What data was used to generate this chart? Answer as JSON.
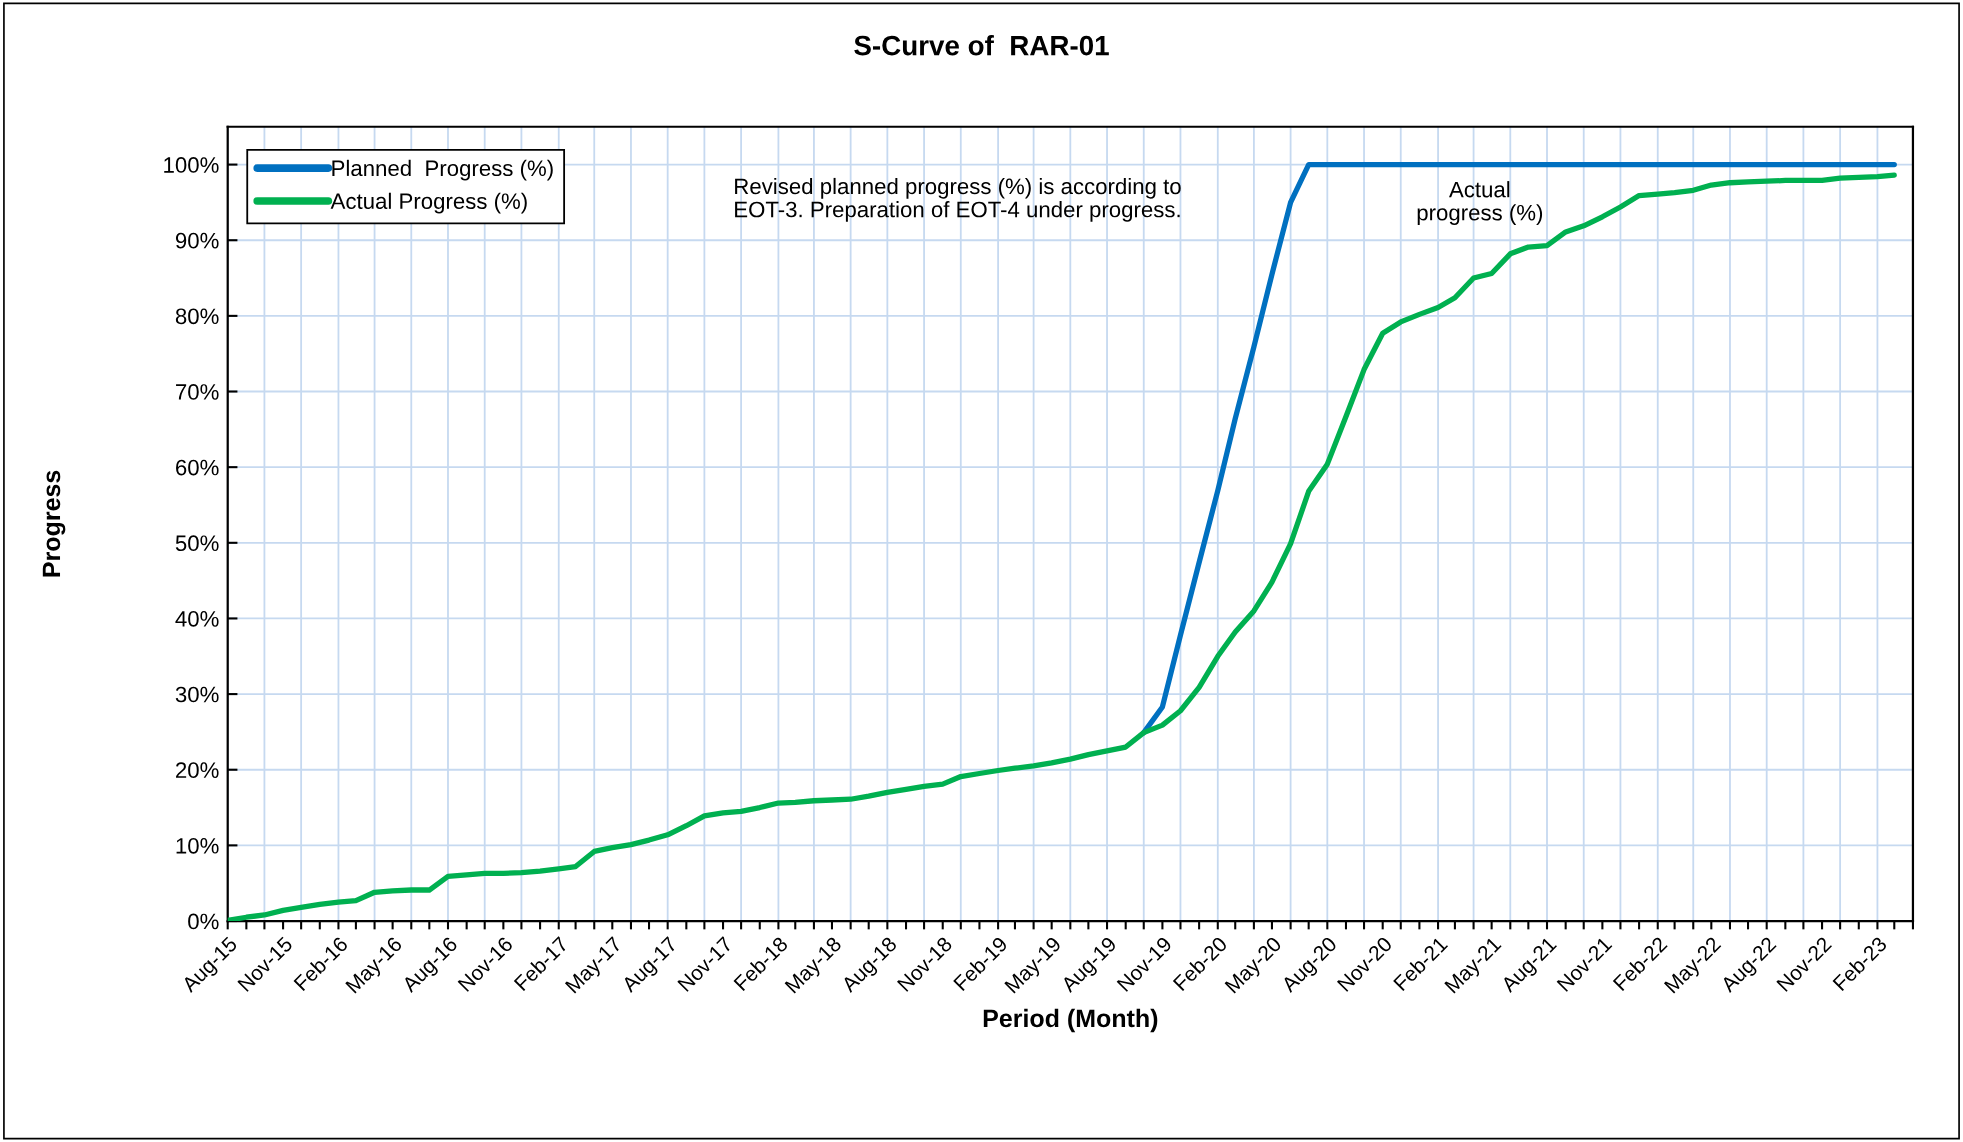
{
  "chart_data": {
    "type": "line",
    "title": "S-Curve of  RAR-01",
    "xlabel": "Period (Month)",
    "ylabel": "Progress",
    "annotations": [
      "Revised planned progress (%) is according to\nEOT-3. Preparation of EOT-4 under progress.",
      "Actual\nprogress (%)"
    ],
    "x": [
      "2015-08",
      "2015-09",
      "2015-10",
      "2015-11",
      "2015-12",
      "2016-01",
      "2016-02",
      "2016-03",
      "2016-04",
      "2016-05",
      "2016-06",
      "2016-07",
      "2016-08",
      "2016-09",
      "2016-10",
      "2016-11",
      "2016-12",
      "2017-01",
      "2017-02",
      "2017-03",
      "2017-04",
      "2017-05",
      "2017-06",
      "2017-07",
      "2017-08",
      "2017-09",
      "2017-10",
      "2017-11",
      "2017-12",
      "2018-01",
      "2018-02",
      "2018-03",
      "2018-04",
      "2018-05",
      "2018-06",
      "2018-07",
      "2018-08",
      "2018-09",
      "2018-10",
      "2018-11",
      "2018-12",
      "2019-01",
      "2019-02",
      "2019-03",
      "2019-04",
      "2019-05",
      "2019-06",
      "2019-07",
      "2019-08",
      "2019-09",
      "2019-10",
      "2019-11",
      "2019-12",
      "2020-01",
      "2020-02",
      "2020-03",
      "2020-04",
      "2020-05",
      "2020-06",
      "2020-07",
      "2020-08",
      "2020-09",
      "2020-10",
      "2020-11",
      "2020-12",
      "2021-01",
      "2021-02",
      "2021-03",
      "2021-04",
      "2021-05",
      "2021-06",
      "2021-07",
      "2021-08",
      "2021-09",
      "2021-10",
      "2021-11",
      "2021-12",
      "2022-01",
      "2022-02",
      "2022-03",
      "2022-04",
      "2022-05",
      "2022-06",
      "2022-07",
      "2022-08",
      "2022-09",
      "2022-10",
      "2022-11",
      "2022-12",
      "2023-01",
      "2023-02",
      "2023-03"
    ],
    "series": [
      {
        "name": "Planned  Progress (%)",
        "color": "#0070c0",
        "values": [
          null,
          null,
          null,
          null,
          null,
          null,
          null,
          null,
          null,
          null,
          null,
          null,
          null,
          null,
          null,
          null,
          null,
          null,
          null,
          null,
          null,
          null,
          null,
          null,
          null,
          null,
          null,
          null,
          null,
          null,
          null,
          null,
          null,
          null,
          null,
          null,
          null,
          null,
          null,
          null,
          null,
          null,
          null,
          null,
          null,
          null,
          null,
          null,
          null,
          null,
          24.9,
          28.3,
          37.8,
          47.4,
          56.9,
          66.4,
          75.9,
          85.5,
          95,
          100,
          100,
          100,
          100,
          100,
          100,
          100,
          100,
          100,
          100,
          100,
          100,
          100,
          100,
          100,
          100,
          100,
          100,
          100,
          100,
          100,
          100,
          100,
          100,
          100,
          100,
          100,
          100,
          100,
          100,
          100,
          100,
          100
        ]
      },
      {
        "name": "Actual Progress (%)",
        "color": "#00b050",
        "values": [
          0.1,
          0.5,
          0.8,
          1.4,
          1.8,
          2.2,
          2.5,
          2.7,
          3.8,
          4.0,
          4.1,
          4.1,
          5.9,
          6.1,
          6.3,
          6.3,
          6.4,
          6.6,
          6.9,
          7.2,
          9.2,
          9.7,
          10.1,
          10.7,
          11.4,
          12.6,
          13.9,
          14.3,
          14.5,
          15.0,
          15.6,
          15.7,
          15.9,
          16.0,
          16.1,
          16.5,
          17.0,
          17.4,
          17.8,
          18.1,
          19.1,
          19.5,
          19.9,
          20.2,
          20.5,
          20.9,
          21.4,
          22.0,
          22.5,
          23.0,
          24.9,
          25.9,
          27.8,
          30.9,
          35.0,
          38.2,
          41.0,
          44.8,
          49.9,
          56.8,
          60.4,
          66.7,
          72.9,
          77.7,
          79.2,
          80.2,
          81.1,
          82.4,
          85.0,
          85.6,
          88.2,
          89.1,
          89.3,
          91.1,
          91.9,
          93.1,
          94.4,
          95.9,
          96.1,
          96.3,
          96.6,
          97.3,
          97.6,
          97.7,
          97.8,
          97.9,
          97.9,
          97.9,
          98.2,
          98.3,
          98.4,
          98.6
        ]
      }
    ],
    "xlim": [
      "2015-08",
      "2023-04"
    ],
    "xticks": [
      {
        "value": "2015-08",
        "label": "Aug-15"
      },
      {
        "value": "2015-09",
        "label": null
      },
      {
        "value": "2015-10",
        "label": null
      },
      {
        "value": "2015-11",
        "label": "Nov-15"
      },
      {
        "value": "2015-12",
        "label": null
      },
      {
        "value": "2016-01",
        "label": null
      },
      {
        "value": "2016-02",
        "label": "Feb-16"
      },
      {
        "value": "2016-03",
        "label": null
      },
      {
        "value": "2016-04",
        "label": null
      },
      {
        "value": "2016-05",
        "label": "May-16"
      },
      {
        "value": "2016-06",
        "label": null
      },
      {
        "value": "2016-07",
        "label": null
      },
      {
        "value": "2016-08",
        "label": "Aug-16"
      },
      {
        "value": "2016-09",
        "label": null
      },
      {
        "value": "2016-10",
        "label": null
      },
      {
        "value": "2016-11",
        "label": "Nov-16"
      },
      {
        "value": "2016-12",
        "label": null
      },
      {
        "value": "2017-01",
        "label": null
      },
      {
        "value": "2017-02",
        "label": "Feb-17"
      },
      {
        "value": "2017-03",
        "label": null
      },
      {
        "value": "2017-04",
        "label": null
      },
      {
        "value": "2017-05",
        "label": "May-17"
      },
      {
        "value": "2017-06",
        "label": null
      },
      {
        "value": "2017-07",
        "label": null
      },
      {
        "value": "2017-08",
        "label": "Aug-17"
      },
      {
        "value": "2017-09",
        "label": null
      },
      {
        "value": "2017-10",
        "label": null
      },
      {
        "value": "2017-11",
        "label": "Nov-17"
      },
      {
        "value": "2017-12",
        "label": null
      },
      {
        "value": "2018-01",
        "label": null
      },
      {
        "value": "2018-02",
        "label": "Feb-18"
      },
      {
        "value": "2018-03",
        "label": null
      },
      {
        "value": "2018-04",
        "label": null
      },
      {
        "value": "2018-05",
        "label": "May-18"
      },
      {
        "value": "2018-06",
        "label": null
      },
      {
        "value": "2018-07",
        "label": null
      },
      {
        "value": "2018-08",
        "label": "Aug-18"
      },
      {
        "value": "2018-09",
        "label": null
      },
      {
        "value": "2018-10",
        "label": null
      },
      {
        "value": "2018-11",
        "label": "Nov-18"
      },
      {
        "value": "2018-12",
        "label": null
      },
      {
        "value": "2019-01",
        "label": null
      },
      {
        "value": "2019-02",
        "label": "Feb-19"
      },
      {
        "value": "2019-03",
        "label": null
      },
      {
        "value": "2019-04",
        "label": null
      },
      {
        "value": "2019-05",
        "label": "May-19"
      },
      {
        "value": "2019-06",
        "label": null
      },
      {
        "value": "2019-07",
        "label": null
      },
      {
        "value": "2019-08",
        "label": "Aug-19"
      },
      {
        "value": "2019-09",
        "label": null
      },
      {
        "value": "2019-10",
        "label": null
      },
      {
        "value": "2019-11",
        "label": "Nov-19"
      },
      {
        "value": "2019-12",
        "label": null
      },
      {
        "value": "2020-01",
        "label": null
      },
      {
        "value": "2020-02",
        "label": "Feb-20"
      },
      {
        "value": "2020-03",
        "label": null
      },
      {
        "value": "2020-04",
        "label": null
      },
      {
        "value": "2020-05",
        "label": "May-20"
      },
      {
        "value": "2020-06",
        "label": null
      },
      {
        "value": "2020-07",
        "label": null
      },
      {
        "value": "2020-08",
        "label": "Aug-20"
      },
      {
        "value": "2020-09",
        "label": null
      },
      {
        "value": "2020-10",
        "label": null
      },
      {
        "value": "2020-11",
        "label": "Nov-20"
      },
      {
        "value": "2020-12",
        "label": null
      },
      {
        "value": "2021-01",
        "label": null
      },
      {
        "value": "2021-02",
        "label": "Feb-21"
      },
      {
        "value": "2021-03",
        "label": null
      },
      {
        "value": "2021-04",
        "label": null
      },
      {
        "value": "2021-05",
        "label": "May-21"
      },
      {
        "value": "2021-06",
        "label": null
      },
      {
        "value": "2021-07",
        "label": null
      },
      {
        "value": "2021-08",
        "label": "Aug-21"
      },
      {
        "value": "2021-09",
        "label": null
      },
      {
        "value": "2021-10",
        "label": null
      },
      {
        "value": "2021-11",
        "label": "Nov-21"
      },
      {
        "value": "2021-12",
        "label": null
      },
      {
        "value": "2022-01",
        "label": null
      },
      {
        "value": "2022-02",
        "label": "Feb-22"
      },
      {
        "value": "2022-03",
        "label": null
      },
      {
        "value": "2022-04",
        "label": null
      },
      {
        "value": "2022-05",
        "label": "May-22"
      },
      {
        "value": "2022-06",
        "label": null
      },
      {
        "value": "2022-07",
        "label": null
      },
      {
        "value": "2022-08",
        "label": "Aug-22"
      },
      {
        "value": "2022-09",
        "label": null
      },
      {
        "value": "2022-10",
        "label": null
      },
      {
        "value": "2022-11",
        "label": "Nov-22"
      },
      {
        "value": "2022-12",
        "label": null
      },
      {
        "value": "2023-01",
        "label": null
      },
      {
        "value": "2023-02",
        "label": "Feb-23"
      },
      {
        "value": "2023-03",
        "label": null
      },
      {
        "value": "2023-04",
        "label": null
      }
    ],
    "ylim": [
      0,
      105
    ],
    "yticks": [
      {
        "value": 0,
        "label": "0%"
      },
      {
        "value": 10,
        "label": "10%"
      },
      {
        "value": 20,
        "label": "20%"
      },
      {
        "value": 30,
        "label": "30%"
      },
      {
        "value": 40,
        "label": "40%"
      },
      {
        "value": 50,
        "label": "50%"
      },
      {
        "value": 60,
        "label": "60%"
      },
      {
        "value": 70,
        "label": "70%"
      },
      {
        "value": 80,
        "label": "80%"
      },
      {
        "value": 90,
        "label": "90%"
      },
      {
        "value": 100,
        "label": "100%"
      }
    ],
    "grid": true,
    "legend": "top left",
    "marker": "none",
    "line_style": "solid"
  }
}
